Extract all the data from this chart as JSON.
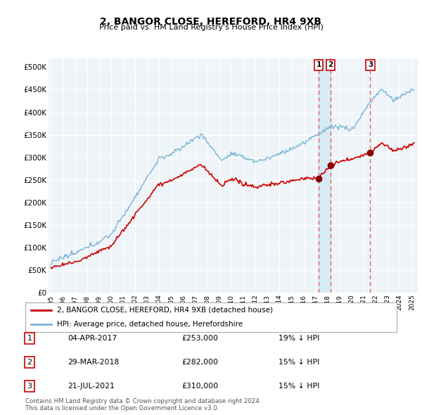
{
  "title": "2, BANGOR CLOSE, HEREFORD, HR4 9XB",
  "subtitle": "Price paid vs. HM Land Registry's House Price Index (HPI)",
  "ylabel_ticks": [
    "£0",
    "£50K",
    "£100K",
    "£150K",
    "£200K",
    "£250K",
    "£300K",
    "£350K",
    "£400K",
    "£450K",
    "£500K"
  ],
  "ytick_values": [
    0,
    50000,
    100000,
    150000,
    200000,
    250000,
    300000,
    350000,
    400000,
    450000,
    500000
  ],
  "ylim": [
    0,
    520000
  ],
  "xlim_start": 1994.8,
  "xlim_end": 2025.5,
  "hpi_color": "#7ab3d4",
  "price_color": "#cc0000",
  "sale_marker_color": "#8b0000",
  "vline_color": "#e06060",
  "shade_color": "#d0e8f5",
  "bg_color": "#ffffff",
  "plot_bg_color": "#eef4f8",
  "grid_color": "#ffffff",
  "legend_label_red": "2, BANGOR CLOSE, HEREFORD, HR4 9XB (detached house)",
  "legend_label_blue": "HPI: Average price, detached house, Herefordshire",
  "sale1_x": 2017.27,
  "sale1_y": 253000,
  "sale1_label": "1",
  "sale2_x": 2018.25,
  "sale2_y": 282000,
  "sale2_label": "2",
  "sale3_x": 2021.55,
  "sale3_y": 310000,
  "sale3_label": "3",
  "footer": "Contains HM Land Registry data © Crown copyright and database right 2024.\nThis data is licensed under the Open Government Licence v3.0.",
  "table_data": [
    [
      "1",
      "04-APR-2017",
      "£253,000",
      "19% ↓ HPI"
    ],
    [
      "2",
      "29-MAR-2018",
      "£282,000",
      "15% ↓ HPI"
    ],
    [
      "3",
      "21-JUL-2021",
      "£310,000",
      "15% ↓ HPI"
    ]
  ]
}
